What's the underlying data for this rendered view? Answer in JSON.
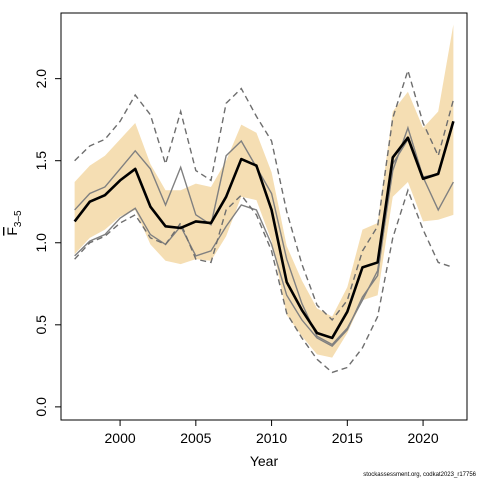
{
  "chart_data": {
    "type": "line",
    "xlabel": "Year",
    "ylabel": "F",
    "ylabel_subscript": "3–5",
    "credit": "stockassessment.org, codkat2023_r17756",
    "xlim": [
      1996.1,
      2022.9
    ],
    "ylim": [
      -0.08,
      2.4
    ],
    "x_ticks": [
      2000,
      2005,
      2010,
      2015,
      2020
    ],
    "y_ticks": [
      0.0,
      0.5,
      1.0,
      1.5,
      2.0
    ],
    "y_tick_labels": [
      "0.0",
      "0.5",
      "1.0",
      "1.5",
      "2.0"
    ],
    "grid": false,
    "x": [
      1997,
      1998,
      1999,
      2000,
      2001,
      2002,
      2003,
      2004,
      2005,
      2006,
      2007,
      2008,
      2009,
      2010,
      2011,
      2012,
      2013,
      2014,
      2015,
      2016,
      2017,
      2018,
      2019,
      2020,
      2021,
      2022
    ],
    "series": [
      {
        "role": "estimate",
        "color": "#000000",
        "values": [
          1.13,
          1.25,
          1.29,
          1.38,
          1.45,
          1.22,
          1.1,
          1.09,
          1.13,
          1.12,
          1.28,
          1.51,
          1.47,
          1.2,
          0.76,
          0.59,
          0.45,
          0.42,
          0.58,
          0.85,
          0.88,
          1.52,
          1.64,
          1.39,
          1.42,
          1.74
        ]
      },
      {
        "role": "confidence-upper",
        "color": "#f5deb3",
        "values": [
          1.37,
          1.47,
          1.53,
          1.63,
          1.73,
          1.48,
          1.32,
          1.32,
          1.36,
          1.34,
          1.5,
          1.72,
          1.67,
          1.43,
          0.98,
          0.77,
          0.6,
          0.55,
          0.73,
          1.08,
          1.12,
          1.8,
          1.92,
          1.7,
          1.8,
          2.33
        ]
      },
      {
        "role": "confidence-lower",
        "color": "#f5deb3",
        "values": [
          0.93,
          1.03,
          1.08,
          1.16,
          1.2,
          0.99,
          0.89,
          0.87,
          0.9,
          0.89,
          1.04,
          1.28,
          1.26,
          1.01,
          0.56,
          0.43,
          0.32,
          0.3,
          0.45,
          0.65,
          0.68,
          1.28,
          1.37,
          1.13,
          1.14,
          1.17
        ]
      },
      {
        "role": "retro-peel",
        "color": "#808080",
        "dash": false,
        "values": [
          1.2,
          1.3,
          1.34,
          1.45,
          1.56,
          1.45,
          1.23,
          1.46,
          1.17,
          1.11,
          1.53,
          1.62,
          1.46,
          1.3,
          0.9,
          0.63,
          0.43,
          0.38,
          0.48,
          0.65,
          0.83,
          1.44,
          1.7,
          1.4,
          1.2,
          1.37
        ]
      },
      {
        "role": "retro-peel",
        "color": "#808080",
        "dash": false,
        "values": [
          0.92,
          1.01,
          1.05,
          1.15,
          1.21,
          1.05,
          0.99,
          1.1,
          0.92,
          0.95,
          1.1,
          1.23,
          1.2,
          0.99,
          0.68,
          0.53,
          0.42,
          0.37,
          0.47,
          0.67,
          0.8,
          1.48,
          1.63,
          1.4,
          1.42,
          1.74
        ]
      },
      {
        "role": "retro-dashed",
        "color": "#6e6e6e",
        "dash": true,
        "values": [
          1.5,
          1.59,
          1.63,
          1.74,
          1.9,
          1.78,
          1.48,
          1.8,
          1.44,
          1.38,
          1.85,
          1.94,
          1.77,
          1.62,
          1.19,
          0.87,
          0.62,
          0.53,
          0.65,
          0.95,
          1.1,
          1.76,
          2.05,
          1.73,
          1.53,
          1.87
        ]
      },
      {
        "role": "retro-dashed",
        "color": "#6e6e6e",
        "dash": true,
        "values": [
          0.9,
          1.0,
          1.04,
          1.12,
          1.17,
          1.03,
          0.99,
          1.12,
          0.9,
          0.88,
          1.2,
          1.29,
          1.17,
          0.95,
          0.57,
          0.42,
          0.29,
          0.21,
          0.24,
          0.36,
          0.55,
          1.03,
          1.32,
          1.08,
          0.88,
          0.85
        ]
      }
    ]
  }
}
